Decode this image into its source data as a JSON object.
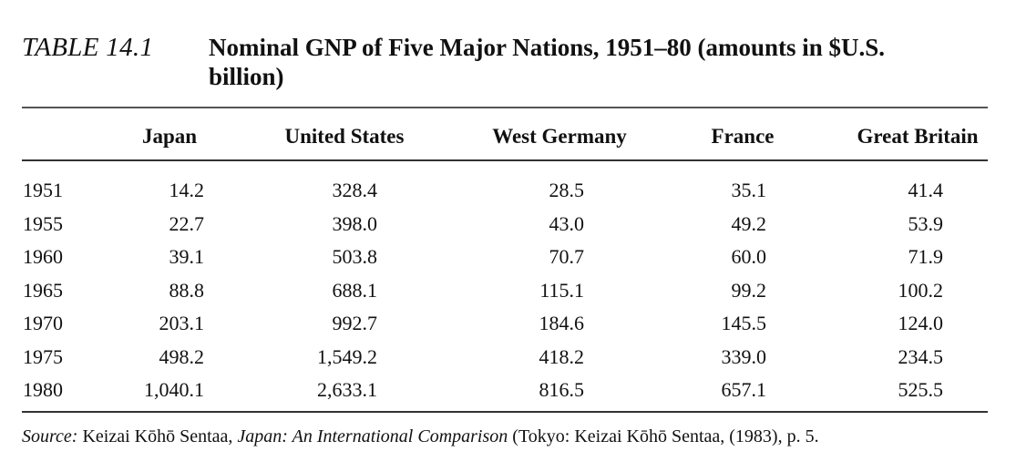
{
  "caption": {
    "label": "TABLE 14.1",
    "title": "Nominal GNP of Five Major Nations, 1951–80 (amounts in $U.S. billion)"
  },
  "table": {
    "columns": [
      "",
      "Japan",
      "United States",
      "West Germany",
      "France",
      "Great Britain"
    ],
    "rows": [
      {
        "year": "1951",
        "values": [
          "14.2",
          "328.4",
          "28.5",
          "35.1",
          "41.4"
        ]
      },
      {
        "year": "1955",
        "values": [
          "22.7",
          "398.0",
          "43.0",
          "49.2",
          "53.9"
        ]
      },
      {
        "year": "1960",
        "values": [
          "39.1",
          "503.8",
          "70.7",
          "60.0",
          "71.9"
        ]
      },
      {
        "year": "1965",
        "values": [
          "88.8",
          "688.1",
          "115.1",
          "99.2",
          "100.2"
        ]
      },
      {
        "year": "1970",
        "values": [
          "203.1",
          "992.7",
          "184.6",
          "145.5",
          "124.0"
        ]
      },
      {
        "year": "1975",
        "values": [
          "498.2",
          "1,549.2",
          "418.2",
          "339.0",
          "234.5"
        ]
      },
      {
        "year": "1980",
        "values": [
          "1,040.1",
          "2,633.1",
          "816.5",
          "657.1",
          "525.5"
        ]
      }
    ]
  },
  "footnote": {
    "source_label": "Source:",
    "text1": " Keizai Kōhō Sentaa, ",
    "book_title": "Japan: An International Comparison",
    "text2": " (Tokyo: Keizai Kōhō Sentaa, (1983), p. 5."
  }
}
